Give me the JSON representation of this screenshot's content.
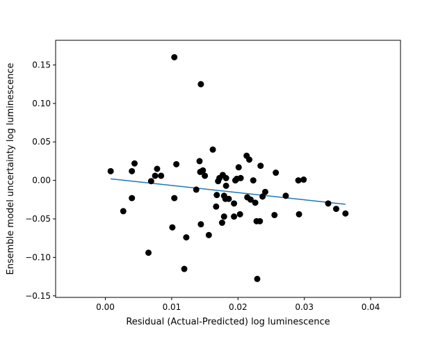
{
  "chart_data": {
    "type": "scatter",
    "title": "",
    "xlabel": "Residual (Actual-Predicted) log luminescence",
    "ylabel": "Ensemble model uncertainty log luminescence",
    "xlim": [
      -0.0075,
      0.0445
    ],
    "ylim": [
      -0.152,
      0.182
    ],
    "grid": false,
    "legend": "none",
    "x_ticks": [
      0.0,
      0.01,
      0.02,
      0.03,
      0.04
    ],
    "x_tick_labels": [
      "0.00",
      "0.01",
      "0.02",
      "0.03",
      "0.04"
    ],
    "y_ticks": [
      -0.15,
      -0.1,
      -0.05,
      0.0,
      0.05,
      0.1,
      0.15
    ],
    "y_tick_labels": [
      "−0.15",
      "−0.10",
      "−0.05",
      "0.00",
      "0.05",
      "0.10",
      "0.15"
    ],
    "colors": {
      "points": "#000000",
      "fit_line": "#1f77b4"
    },
    "series": [
      {
        "kind": "scatter",
        "x": [
          0.0008,
          0.0027,
          0.004,
          0.004,
          0.0044,
          0.0065,
          0.0069,
          0.0075,
          0.0078,
          0.0084,
          0.0101,
          0.0104,
          0.0104,
          0.0107,
          0.0119,
          0.0122,
          0.0137,
          0.0142,
          0.0143,
          0.0144,
          0.0144,
          0.0147,
          0.015,
          0.0156,
          0.0162,
          0.0167,
          0.0168,
          0.017,
          0.0172,
          0.0176,
          0.0177,
          0.0179,
          0.0179,
          0.0181,
          0.0182,
          0.0182,
          0.0186,
          0.0194,
          0.0194,
          0.0196,
          0.0198,
          0.0201,
          0.0203,
          0.0204,
          0.0213,
          0.0214,
          0.0217,
          0.0219,
          0.0223,
          0.0226,
          0.0228,
          0.0229,
          0.0233,
          0.0234,
          0.0237,
          0.0241,
          0.0255,
          0.0257,
          0.0272,
          0.0291,
          0.0292,
          0.0299,
          0.0336,
          0.0348,
          0.0362
        ],
        "y": [
          0.012,
          -0.04,
          -0.023,
          0.012,
          0.022,
          -0.094,
          -0.001,
          0.006,
          0.015,
          0.006,
          -0.061,
          0.16,
          -0.023,
          0.021,
          -0.115,
          -0.074,
          -0.012,
          0.025,
          0.011,
          -0.057,
          0.125,
          0.013,
          0.006,
          -0.071,
          0.04,
          -0.034,
          -0.019,
          -0.001,
          0.003,
          -0.055,
          0.007,
          -0.02,
          -0.047,
          -0.024,
          -0.007,
          0.003,
          -0.024,
          -0.03,
          -0.047,
          0.0,
          0.002,
          0.017,
          -0.044,
          0.003,
          0.032,
          -0.022,
          0.027,
          -0.025,
          0.0,
          -0.029,
          -0.053,
          -0.128,
          -0.053,
          0.019,
          -0.021,
          -0.015,
          -0.045,
          0.01,
          -0.02,
          0.0,
          -0.044,
          0.001,
          -0.03,
          -0.037,
          -0.043
        ]
      },
      {
        "kind": "line",
        "x": [
          0.0008,
          0.0362
        ],
        "y": [
          0.002,
          -0.031
        ]
      }
    ]
  }
}
